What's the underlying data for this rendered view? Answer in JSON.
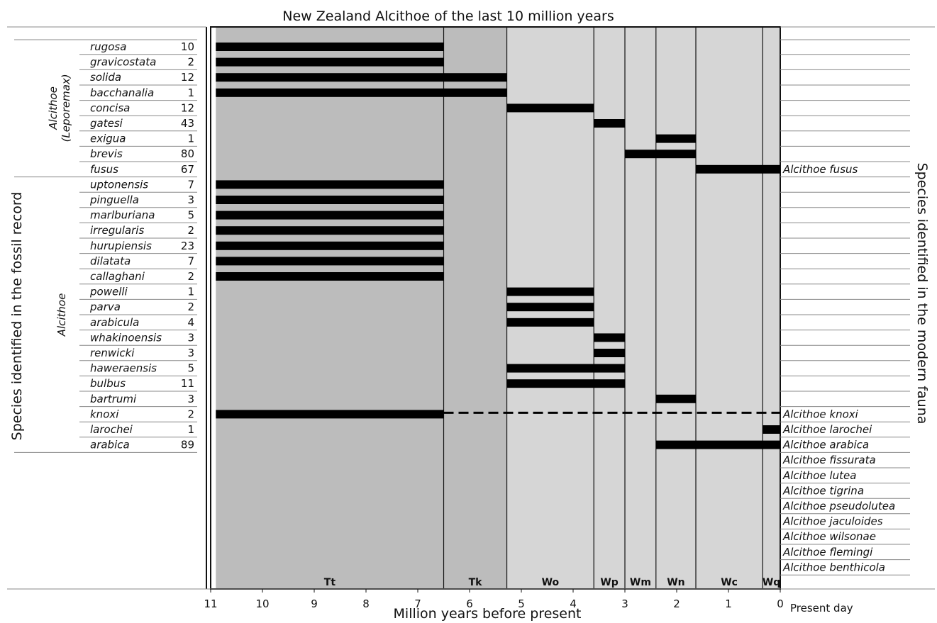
{
  "chart_data": {
    "type": "range",
    "title": "New Zealand Alcithoe of the last 10 million years",
    "xlabel": "Million years before present",
    "left_label": "Species identified in the fossil record",
    "right_label": "Species identified in the modern fauna",
    "present_label": "Present day",
    "xlim": [
      11,
      0
    ],
    "x_ticks": [
      "11",
      "10",
      "9",
      "8",
      "7",
      "6",
      "5",
      "4",
      "3",
      "2",
      "1",
      "0"
    ],
    "stages": [
      {
        "name": "Tt",
        "start": 10.9,
        "end": 6.5,
        "color": "#bcbcbc"
      },
      {
        "name": "Tk",
        "start": 6.5,
        "end": 5.28,
        "color": "#bcbcbc"
      },
      {
        "name": "Wo",
        "start": 5.28,
        "end": 3.6,
        "color": "#d6d6d6"
      },
      {
        "name": "Wp",
        "start": 3.6,
        "end": 3.0,
        "color": "#d6d6d6"
      },
      {
        "name": "Wm",
        "start": 3.0,
        "end": 2.4,
        "color": "#d6d6d6"
      },
      {
        "name": "Wn",
        "start": 2.4,
        "end": 1.63,
        "color": "#d6d6d6"
      },
      {
        "name": "Wc",
        "start": 1.63,
        "end": 0.34,
        "color": "#d6d6d6"
      },
      {
        "name": "Wq",
        "start": 0.34,
        "end": 0.0,
        "color": "#d6d6d6"
      }
    ],
    "groups": [
      {
        "name": "Alcithoe",
        "subname": "(Leporemax)",
        "rows": [
          0,
          8
        ]
      },
      {
        "name": "Alcithoe",
        "subname": "",
        "rows": [
          9,
          26
        ]
      }
    ],
    "species": [
      {
        "name": "rugosa",
        "count": "10",
        "ranges": [
          [
            10.9,
            6.5
          ]
        ]
      },
      {
        "name": "gravicostata",
        "count": "2",
        "ranges": [
          [
            10.9,
            6.5
          ]
        ]
      },
      {
        "name": "solida",
        "count": "12",
        "ranges": [
          [
            10.9,
            5.28
          ]
        ]
      },
      {
        "name": "bacchanalia",
        "count": "1",
        "ranges": [
          [
            10.9,
            5.28
          ]
        ]
      },
      {
        "name": "concisa",
        "count": "12",
        "ranges": [
          [
            5.28,
            3.6
          ]
        ]
      },
      {
        "name": "gatesi",
        "count": "43",
        "ranges": [
          [
            3.6,
            3.0
          ]
        ]
      },
      {
        "name": "exigua",
        "count": "1",
        "ranges": [
          [
            2.4,
            1.63
          ]
        ]
      },
      {
        "name": "brevis",
        "count": "80",
        "ranges": [
          [
            3.0,
            1.63
          ]
        ]
      },
      {
        "name": "fusus",
        "count": "67",
        "ranges": [
          [
            1.63,
            0.0
          ]
        ],
        "modern": "Alcithoe fusus"
      },
      {
        "name": "uptonensis",
        "count": "7",
        "ranges": [
          [
            10.9,
            6.5
          ]
        ]
      },
      {
        "name": "pinguella",
        "count": "3",
        "ranges": [
          [
            10.9,
            6.5
          ]
        ]
      },
      {
        "name": "marlburiana",
        "count": "5",
        "ranges": [
          [
            10.9,
            6.5
          ]
        ]
      },
      {
        "name": "irregularis",
        "count": "2",
        "ranges": [
          [
            10.9,
            6.5
          ]
        ]
      },
      {
        "name": "hurupiensis",
        "count": "23",
        "ranges": [
          [
            10.9,
            6.5
          ]
        ]
      },
      {
        "name": "dilatata",
        "count": "7",
        "ranges": [
          [
            10.9,
            6.5
          ]
        ]
      },
      {
        "name": "callaghani",
        "count": "2",
        "ranges": [
          [
            10.9,
            6.5
          ]
        ]
      },
      {
        "name": "powelli",
        "count": "1",
        "ranges": [
          [
            5.28,
            3.6
          ]
        ]
      },
      {
        "name": "parva",
        "count": "2",
        "ranges": [
          [
            5.28,
            3.6
          ]
        ]
      },
      {
        "name": "arabicula",
        "count": "4",
        "ranges": [
          [
            5.28,
            3.6
          ]
        ]
      },
      {
        "name": "whakinoensis",
        "count": "3",
        "ranges": [
          [
            3.6,
            3.0
          ]
        ]
      },
      {
        "name": "renwicki",
        "count": "3",
        "ranges": [
          [
            3.6,
            3.0
          ]
        ]
      },
      {
        "name": "haweraensis",
        "count": "5",
        "ranges": [
          [
            5.28,
            3.0
          ]
        ]
      },
      {
        "name": "bulbus",
        "count": "11",
        "ranges": [
          [
            5.28,
            3.0
          ]
        ]
      },
      {
        "name": "bartrumi",
        "count": "3",
        "ranges": [
          [
            2.4,
            1.63
          ]
        ]
      },
      {
        "name": "knoxi",
        "count": "2",
        "ranges": [
          [
            10.9,
            6.5
          ]
        ],
        "dashed": [
          6.5,
          0.0
        ],
        "modern": "Alcithoe knoxi"
      },
      {
        "name": "larochei",
        "count": "1",
        "ranges": [
          [
            0.34,
            0.0
          ]
        ],
        "modern": "Alcithoe larochei"
      },
      {
        "name": "arabica",
        "count": "89",
        "ranges": [
          [
            2.4,
            0.0
          ]
        ],
        "modern": "Alcithoe arabica"
      }
    ],
    "modern_only": [
      "Alcithoe fissurata",
      "Alcithoe lutea",
      "Alcithoe tigrina",
      "Alcithoe pseudolutea",
      "Alcithoe jaculoides",
      "Alcithoe wilsonae",
      "Alcithoe flemingi",
      "Alcithoe benthicola"
    ]
  }
}
